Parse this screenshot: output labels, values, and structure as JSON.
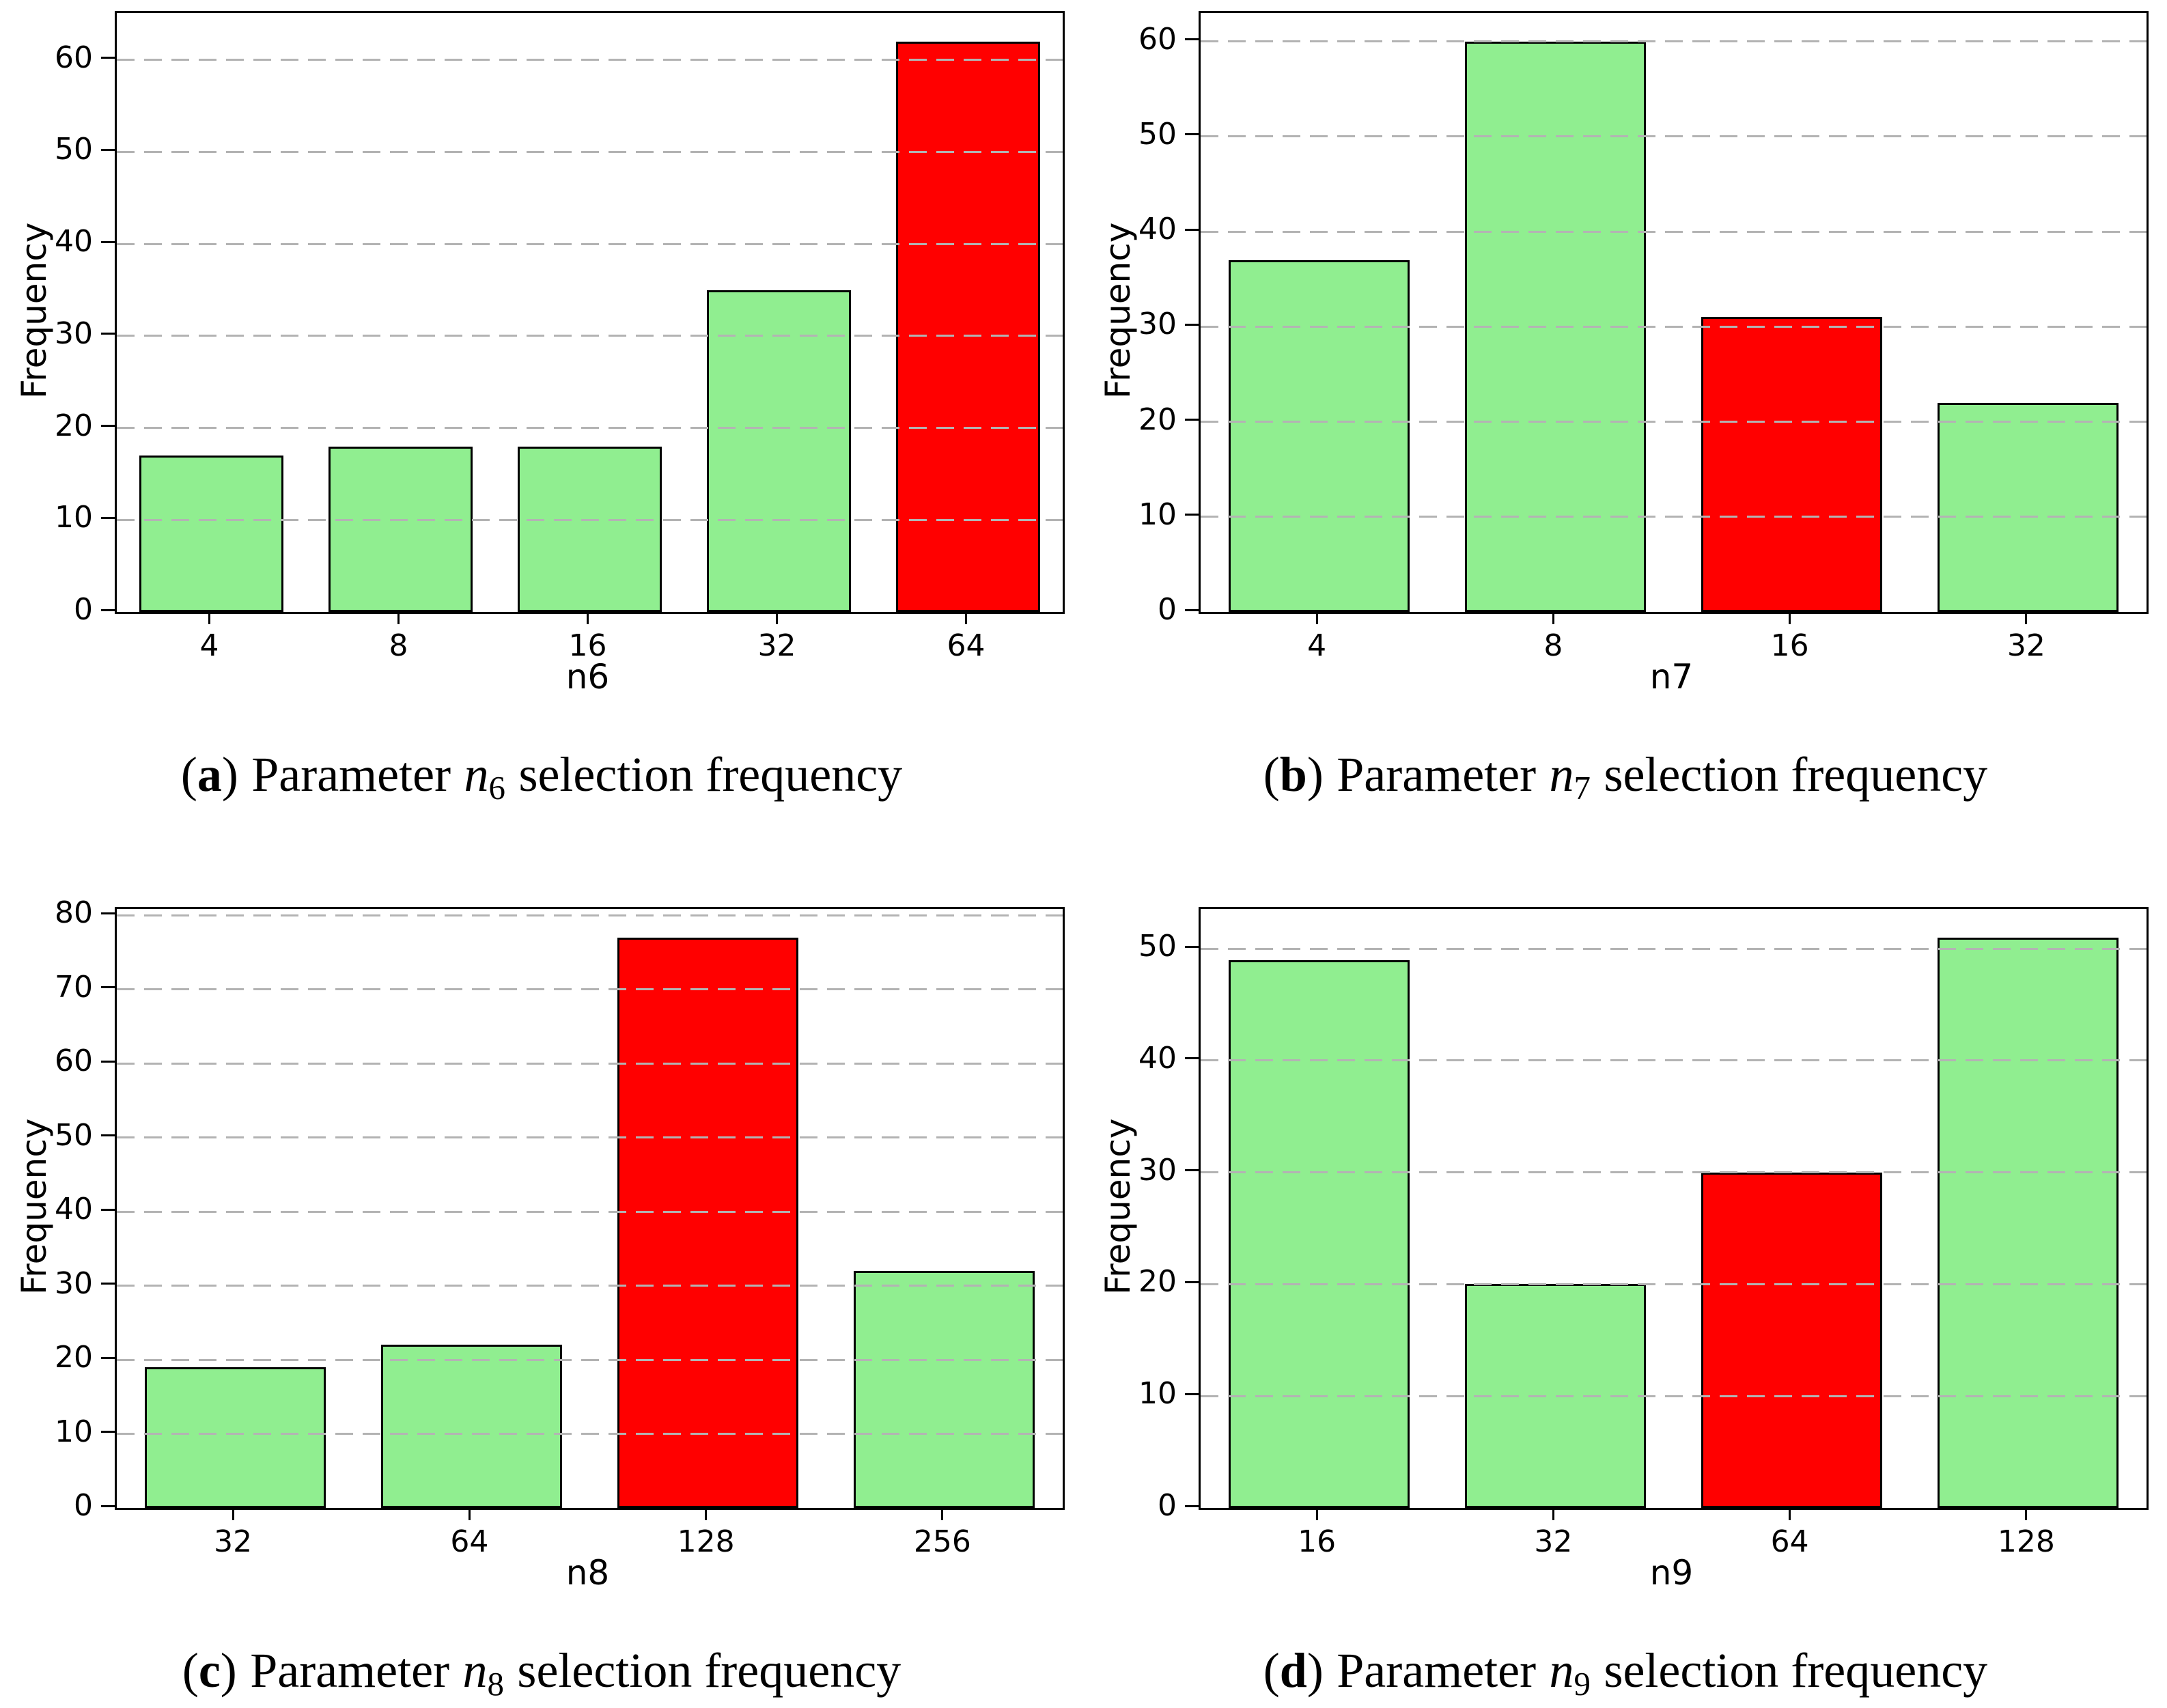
{
  "page": {
    "background": "#ffffff"
  },
  "colors": {
    "bar_default": "#90EE90",
    "bar_highlight": "#FF0000",
    "bar_edge": "#000000",
    "gridline": "#b3b3b3",
    "spine": "#000000",
    "text": "#000000"
  },
  "chart_data": [
    {
      "type": "bar",
      "xlabel": "n6",
      "ylabel": "Frequency",
      "categories": [
        "4",
        "8",
        "16",
        "32",
        "64"
      ],
      "values": [
        17,
        18,
        18,
        35,
        62
      ],
      "highlight_index": 4,
      "highlight_category": "64",
      "yticks": [
        0,
        10,
        20,
        30,
        40,
        50,
        60
      ],
      "ylim": [
        0,
        65.1
      ],
      "grid": "horizontal-dashed",
      "legend": "none"
    },
    {
      "type": "bar",
      "xlabel": "n7",
      "ylabel": "Frequency",
      "categories": [
        "4",
        "8",
        "16",
        "32"
      ],
      "values": [
        37,
        60,
        31,
        22
      ],
      "highlight_index": 2,
      "highlight_category": "16",
      "yticks": [
        0,
        10,
        20,
        30,
        40,
        50,
        60
      ],
      "ylim": [
        0,
        63
      ],
      "grid": "horizontal-dashed",
      "legend": "none"
    },
    {
      "type": "bar",
      "xlabel": "n8",
      "ylabel": "Frequency",
      "categories": [
        "32",
        "64",
        "128",
        "256"
      ],
      "values": [
        19,
        22,
        77,
        32
      ],
      "highlight_index": 2,
      "highlight_category": "128",
      "yticks": [
        0,
        10,
        20,
        30,
        40,
        50,
        60,
        70,
        80
      ],
      "ylim": [
        0,
        80.85
      ],
      "grid": "horizontal-dashed",
      "legend": "none"
    },
    {
      "type": "bar",
      "xlabel": "n9",
      "ylabel": "Frequency",
      "categories": [
        "16",
        "32",
        "64",
        "128"
      ],
      "values": [
        49,
        20,
        30,
        51
      ],
      "highlight_index": 2,
      "highlight_category": "64",
      "yticks": [
        0,
        10,
        20,
        30,
        40,
        50
      ],
      "ylim": [
        0,
        53.55
      ],
      "grid": "horizontal-dashed",
      "legend": "none"
    }
  ],
  "captions": [
    {
      "open": "(",
      "letter": "a",
      "close": ")",
      "before": "Parameter",
      "param": "n",
      "sub": "6",
      "after": "selection frequency"
    },
    {
      "open": "(",
      "letter": "b",
      "close": ")",
      "before": "Parameter",
      "param": "n",
      "sub": "7",
      "after": "selection frequency"
    },
    {
      "open": "(",
      "letter": "c",
      "close": ")",
      "before": "Parameter",
      "param": "n",
      "sub": "8",
      "after": "selection frequency"
    },
    {
      "open": "(",
      "letter": "d",
      "close": ")",
      "before": "Parameter",
      "param": "n",
      "sub": "9",
      "after": "selection frequency"
    }
  ]
}
